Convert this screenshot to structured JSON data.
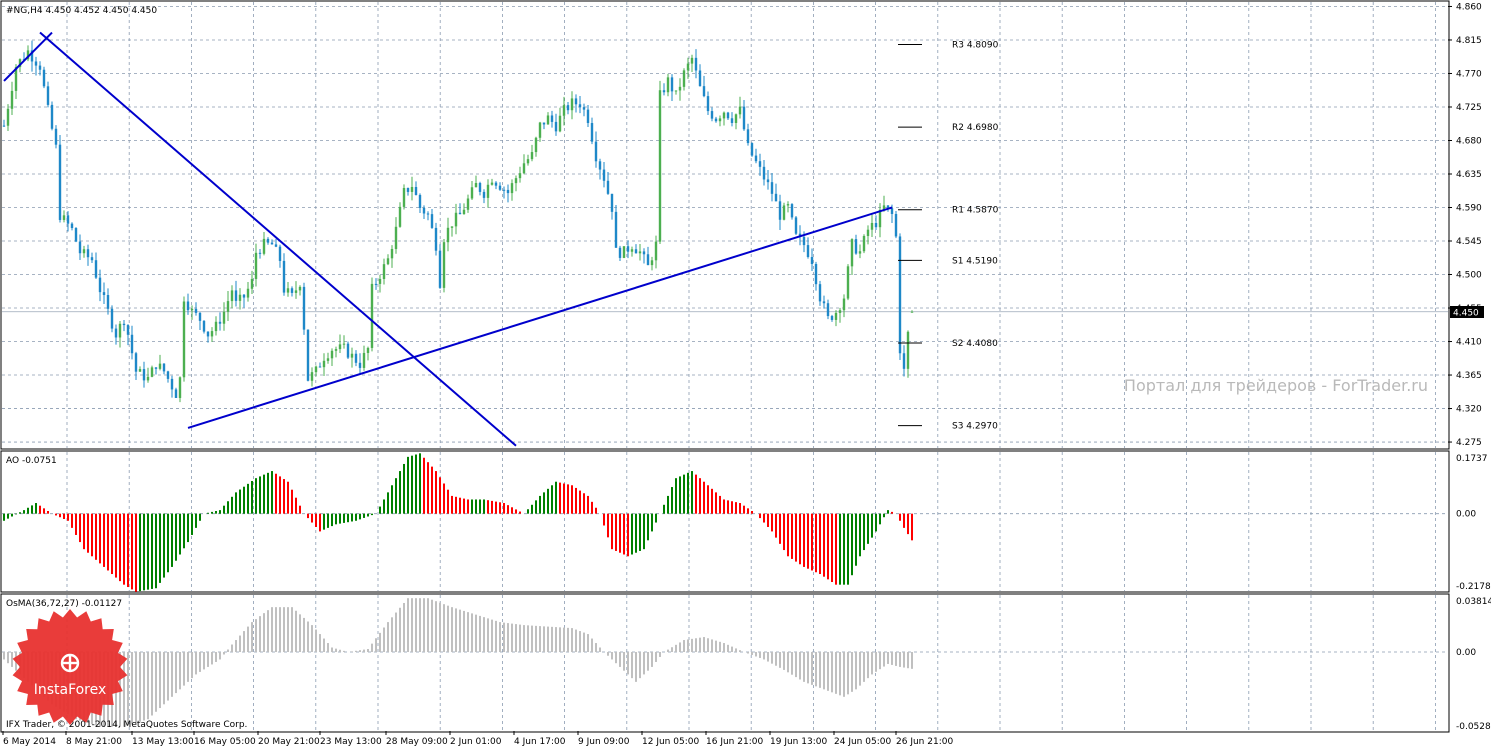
{
  "header": {
    "symbol_info": "#NG,H4  4.450 4.452 4.450 4.450",
    "ao_label": "AO -0.0751",
    "osma_label": "OsMA(36,72,27) -0.01127",
    "copyright": "IFX Trader, © 2001-2014, MetaQuotes Software Corp."
  },
  "watermark": "Портал для трейдеров - ForTrader.ru",
  "logo": {
    "text": "InstaForex",
    "color": "#e8312f"
  },
  "colors": {
    "bull": "#4caf50",
    "bear": "#1e88c8",
    "trendline": "#0000cc",
    "grid": "#8a9bb0",
    "ao_up": "#008000",
    "ao_down": "#ff0000",
    "osma": "#c0c0c0",
    "price_tag_bg": "#000000"
  },
  "chart_data": [
    {
      "type": "candlestick",
      "panel": "main",
      "title": "#NG,H4",
      "ohlc_last": {
        "open": 4.45,
        "high": 4.452,
        "low": 4.45,
        "close": 4.45
      },
      "current_price": "4.450",
      "ylim": [
        4.267,
        4.866
      ],
      "y_ticks": [
        "4.860",
        "4.815",
        "4.770",
        "4.725",
        "4.680",
        "4.635",
        "4.590",
        "4.545",
        "4.500",
        "4.455",
        "4.410",
        "4.365",
        "4.320",
        "4.275"
      ],
      "x_ticks": [
        "6 May 2014",
        "8 May 21:00",
        "13 May 13:00",
        "16 May 05:00",
        "20 May 21:00",
        "23 May 13:00",
        "28 May 09:00",
        "2 Jun 01:00",
        "4 Jun 17:00",
        "9 Jun 09:00",
        "12 Jun 05:00",
        "16 Jun 21:00",
        "19 Jun 13:00",
        "24 Jun 05:00",
        "26 Jun 21:00"
      ],
      "close_path": [
        [
          0,
          4.7
        ],
        [
          3,
          4.78
        ],
        [
          6,
          4.8
        ],
        [
          9,
          4.78
        ],
        [
          11,
          4.72
        ],
        [
          13,
          4.67
        ],
        [
          14,
          4.58
        ],
        [
          17,
          4.56
        ],
        [
          19,
          4.53
        ],
        [
          22,
          4.52
        ],
        [
          24,
          4.48
        ],
        [
          26,
          4.45
        ],
        [
          28,
          4.42
        ],
        [
          30,
          4.44
        ],
        [
          31,
          4.42
        ],
        [
          33,
          4.37
        ],
        [
          36,
          4.36
        ],
        [
          38,
          4.38
        ],
        [
          40,
          4.37
        ],
        [
          42,
          4.35
        ],
        [
          43,
          4.34
        ],
        [
          44,
          4.36
        ],
        [
          45,
          4.47
        ],
        [
          47,
          4.45
        ],
        [
          49,
          4.44
        ],
        [
          51,
          4.42
        ],
        [
          53,
          4.43
        ],
        [
          55,
          4.45
        ],
        [
          57,
          4.48
        ],
        [
          58,
          4.46
        ],
        [
          60,
          4.47
        ],
        [
          62,
          4.49
        ],
        [
          63,
          4.53
        ],
        [
          65,
          4.54
        ],
        [
          67,
          4.54
        ],
        [
          69,
          4.52
        ],
        [
          70,
          4.48
        ],
        [
          72,
          4.47
        ],
        [
          74,
          4.49
        ],
        [
          75,
          4.43
        ],
        [
          76,
          4.36
        ],
        [
          78,
          4.37
        ],
        [
          80,
          4.39
        ],
        [
          82,
          4.4
        ],
        [
          85,
          4.4
        ],
        [
          87,
          4.39
        ],
        [
          89,
          4.38
        ],
        [
          91,
          4.4
        ],
        [
          92,
          4.48
        ],
        [
          94,
          4.5
        ],
        [
          96,
          4.52
        ],
        [
          98,
          4.56
        ],
        [
          100,
          4.61
        ],
        [
          102,
          4.62
        ],
        [
          104,
          4.59
        ],
        [
          106,
          4.58
        ],
        [
          108,
          4.54
        ],
        [
          109,
          4.49
        ],
        [
          110,
          4.55
        ],
        [
          112,
          4.57
        ],
        [
          114,
          4.58
        ],
        [
          116,
          4.6
        ],
        [
          118,
          4.62
        ],
        [
          120,
          4.61
        ],
        [
          122,
          4.63
        ],
        [
          124,
          4.62
        ],
        [
          126,
          4.61
        ],
        [
          128,
          4.63
        ],
        [
          130,
          4.65
        ],
        [
          132,
          4.66
        ],
        [
          134,
          4.7
        ],
        [
          136,
          4.71
        ],
        [
          138,
          4.7
        ],
        [
          140,
          4.72
        ],
        [
          142,
          4.73
        ],
        [
          144,
          4.73
        ],
        [
          146,
          4.71
        ],
        [
          148,
          4.66
        ],
        [
          150,
          4.63
        ],
        [
          152,
          4.59
        ],
        [
          153,
          4.53
        ],
        [
          155,
          4.53
        ],
        [
          157,
          4.54
        ],
        [
          159,
          4.53
        ],
        [
          161,
          4.51
        ],
        [
          163,
          4.54
        ],
        [
          164,
          4.74
        ],
        [
          166,
          4.76
        ],
        [
          168,
          4.74
        ],
        [
          170,
          4.77
        ],
        [
          172,
          4.79
        ],
        [
          174,
          4.75
        ],
        [
          176,
          4.72
        ],
        [
          178,
          4.71
        ],
        [
          180,
          4.72
        ],
        [
          182,
          4.71
        ],
        [
          184,
          4.72
        ],
        [
          186,
          4.67
        ],
        [
          188,
          4.65
        ],
        [
          190,
          4.63
        ],
        [
          192,
          4.61
        ],
        [
          194,
          4.58
        ],
        [
          196,
          4.59
        ],
        [
          198,
          4.55
        ],
        [
          200,
          4.54
        ],
        [
          202,
          4.52
        ],
        [
          204,
          4.47
        ],
        [
          206,
          4.44
        ],
        [
          208,
          4.45
        ],
        [
          210,
          4.47
        ],
        [
          212,
          4.54
        ],
        [
          214,
          4.53
        ],
        [
          216,
          4.56
        ],
        [
          218,
          4.57
        ],
        [
          220,
          4.59
        ],
        [
          222,
          4.58
        ],
        [
          223,
          4.55
        ],
        [
          224,
          4.4
        ],
        [
          225,
          4.37
        ],
        [
          226,
          4.42
        ],
        [
          227,
          4.45
        ]
      ],
      "pivot_levels": [
        {
          "name": "R3",
          "value": 4.809,
          "label": "R3 4.8090"
        },
        {
          "name": "R2",
          "value": 4.698,
          "label": "R2 4.6980"
        },
        {
          "name": "R1",
          "value": 4.587,
          "label": "R1 4.5870"
        },
        {
          "name": "S1",
          "value": 4.519,
          "label": "S1 4.5190"
        },
        {
          "name": "S2",
          "value": 4.408,
          "label": "S2 4.4080"
        },
        {
          "name": "S3",
          "value": 4.297,
          "label": "S3 4.2970"
        }
      ],
      "trendlines": [
        {
          "name": "descending",
          "from": [
            9,
            4.825
          ],
          "to": [
            128,
            4.27
          ]
        },
        {
          "name": "ascending",
          "from": [
            46,
            4.294
          ],
          "to": [
            222,
            4.59
          ]
        },
        {
          "name": "ascending-early",
          "from": [
            0,
            4.76
          ],
          "to": [
            12,
            4.825
          ]
        }
      ]
    },
    {
      "type": "histogram",
      "panel": "AO",
      "title": "AO -0.0751",
      "ylim": [
        -0.2178,
        0.1737
      ],
      "y_ticks": [
        "0.1737",
        "0.00",
        "-0.2178"
      ],
      "value_path": [
        [
          0,
          -0.02
        ],
        [
          5,
          0.01
        ],
        [
          8,
          0.03
        ],
        [
          12,
          0.0
        ],
        [
          16,
          -0.02
        ],
        [
          20,
          -0.1
        ],
        [
          25,
          -0.15
        ],
        [
          30,
          -0.2
        ],
        [
          33,
          -0.22
        ],
        [
          38,
          -0.21
        ],
        [
          42,
          -0.15
        ],
        [
          46,
          -0.08
        ],
        [
          50,
          0.0
        ],
        [
          54,
          0.01
        ],
        [
          58,
          0.06
        ],
        [
          63,
          0.1
        ],
        [
          67,
          0.12
        ],
        [
          71,
          0.09
        ],
        [
          75,
          0.0
        ],
        [
          79,
          -0.05
        ],
        [
          83,
          -0.03
        ],
        [
          88,
          -0.02
        ],
        [
          93,
          0.0
        ],
        [
          97,
          0.08
        ],
        [
          101,
          0.16
        ],
        [
          104,
          0.17
        ],
        [
          108,
          0.12
        ],
        [
          112,
          0.05
        ],
        [
          116,
          0.04
        ],
        [
          120,
          0.04
        ],
        [
          125,
          0.03
        ],
        [
          130,
          0.0
        ],
        [
          134,
          0.05
        ],
        [
          138,
          0.09
        ],
        [
          142,
          0.08
        ],
        [
          146,
          0.05
        ],
        [
          149,
          0.0
        ],
        [
          152,
          -0.1
        ],
        [
          156,
          -0.12
        ],
        [
          160,
          -0.1
        ],
        [
          164,
          0.0
        ],
        [
          168,
          0.1
        ],
        [
          172,
          0.12
        ],
        [
          176,
          0.08
        ],
        [
          180,
          0.04
        ],
        [
          184,
          0.03
        ],
        [
          188,
          0.0
        ],
        [
          192,
          -0.05
        ],
        [
          196,
          -0.12
        ],
        [
          200,
          -0.15
        ],
        [
          204,
          -0.17
        ],
        [
          208,
          -0.2
        ],
        [
          211,
          -0.2
        ],
        [
          214,
          -0.12
        ],
        [
          218,
          -0.05
        ],
        [
          221,
          0.01
        ],
        [
          223,
          0.0
        ],
        [
          225,
          -0.04
        ],
        [
          227,
          -0.0751
        ]
      ]
    },
    {
      "type": "histogram",
      "panel": "OsMA",
      "title": "OsMA(36,72,27) -0.01127",
      "ylim": [
        -0.05287,
        0.03814
      ],
      "y_ticks": [
        "0.03814",
        "0.00",
        "-0.05287"
      ],
      "value_path": [
        [
          0,
          -0.005
        ],
        [
          6,
          -0.02
        ],
        [
          12,
          -0.035
        ],
        [
          18,
          -0.045
        ],
        [
          24,
          -0.05
        ],
        [
          30,
          -0.05
        ],
        [
          36,
          -0.045
        ],
        [
          42,
          -0.03
        ],
        [
          48,
          -0.015
        ],
        [
          54,
          -0.005
        ],
        [
          57,
          0.005
        ],
        [
          62,
          0.02
        ],
        [
          67,
          0.03
        ],
        [
          72,
          0.03
        ],
        [
          77,
          0.018
        ],
        [
          82,
          0.003
        ],
        [
          86,
          0.0
        ],
        [
          91,
          0.002
        ],
        [
          96,
          0.02
        ],
        [
          101,
          0.036
        ],
        [
          106,
          0.036
        ],
        [
          112,
          0.03
        ],
        [
          118,
          0.025
        ],
        [
          124,
          0.02
        ],
        [
          130,
          0.018
        ],
        [
          136,
          0.017
        ],
        [
          142,
          0.016
        ],
        [
          146,
          0.012
        ],
        [
          150,
          0.0
        ],
        [
          154,
          -0.01
        ],
        [
          158,
          -0.02
        ],
        [
          162,
          -0.01
        ],
        [
          165,
          0.0
        ],
        [
          170,
          0.008
        ],
        [
          175,
          0.01
        ],
        [
          180,
          0.006
        ],
        [
          185,
          0.0
        ],
        [
          190,
          -0.005
        ],
        [
          195,
          -0.012
        ],
        [
          200,
          -0.02
        ],
        [
          205,
          -0.025
        ],
        [
          210,
          -0.03
        ],
        [
          213,
          -0.025
        ],
        [
          217,
          -0.015
        ],
        [
          221,
          -0.008
        ],
        [
          224,
          -0.01
        ],
        [
          227,
          -0.01127
        ]
      ]
    }
  ]
}
